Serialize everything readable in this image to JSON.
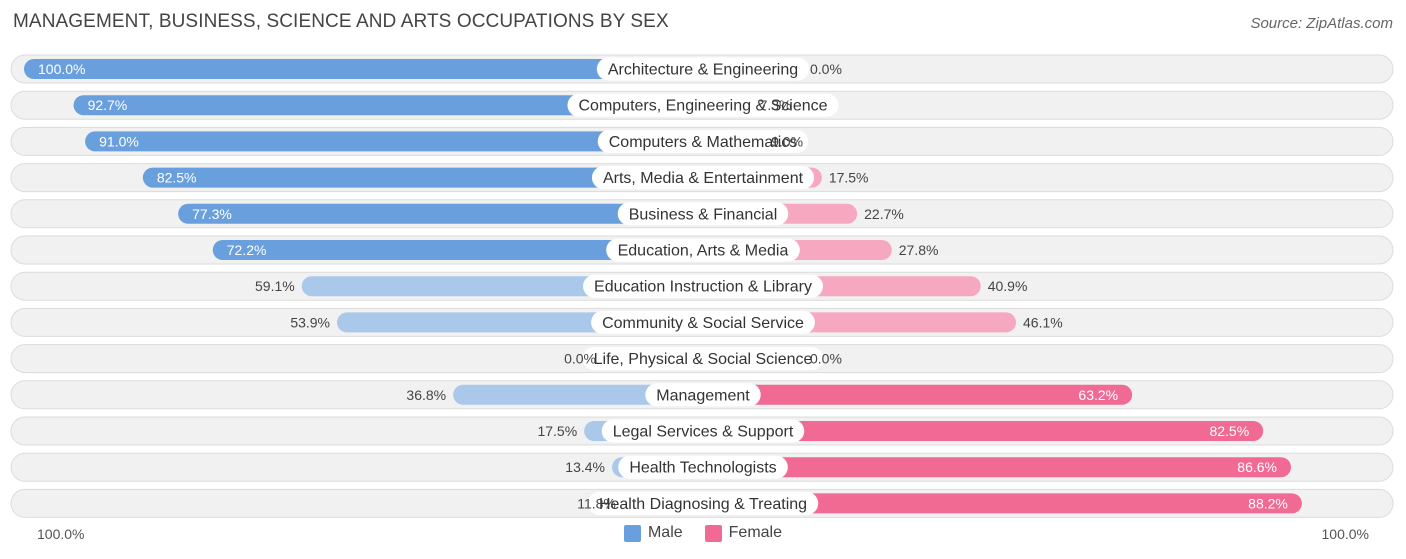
{
  "header": {
    "title": "MANAGEMENT, BUSINESS, SCIENCE AND ARTS OCCUPATIONS BY SEX",
    "source": "Source: ZipAtlas.com"
  },
  "axis": {
    "left_label": "100.0%",
    "right_label": "100.0%"
  },
  "legend": {
    "male_label": "Male",
    "female_label": "Female"
  },
  "colors": {
    "male_strong": "#6a9fdd",
    "male_light": "#a9c8ea",
    "female_strong": "#f06a94",
    "female_light": "#f6a8c1",
    "row_bg": "#f1f1f1",
    "row_border": "#dcdcdc"
  },
  "chart_data": {
    "type": "bar",
    "orientation": "horizontal-diverging",
    "title": "MANAGEMENT, BUSINESS, SCIENCE AND ARTS OCCUPATIONS BY SEX",
    "xlim": [
      0,
      100
    ],
    "categories": [
      "Architecture & Engineering",
      "Computers, Engineering & Science",
      "Computers & Mathematics",
      "Arts, Media & Entertainment",
      "Business & Financial",
      "Education, Arts & Media",
      "Education Instruction & Library",
      "Community & Social Service",
      "Life, Physical & Social Science",
      "Management",
      "Legal Services & Support",
      "Health Technologists",
      "Health Diagnosing & Treating"
    ],
    "series": [
      {
        "name": "Male",
        "values": [
          100.0,
          92.7,
          91.0,
          82.5,
          77.3,
          72.2,
          59.1,
          53.9,
          0.0,
          36.8,
          17.5,
          13.4,
          11.8
        ],
        "labels": [
          "100.0%",
          "92.7%",
          "91.0%",
          "82.5%",
          "77.3%",
          "72.2%",
          "59.1%",
          "53.9%",
          "0.0%",
          "36.8%",
          "17.5%",
          "13.4%",
          "11.8%"
        ]
      },
      {
        "name": "Female",
        "values": [
          0.0,
          7.3,
          9.0,
          17.5,
          22.7,
          27.8,
          40.9,
          46.1,
          0.0,
          63.2,
          82.5,
          86.6,
          88.2
        ],
        "labels": [
          "0.0%",
          "7.3%",
          "9.0%",
          "17.5%",
          "22.7%",
          "27.8%",
          "40.9%",
          "46.1%",
          "0.0%",
          "63.2%",
          "82.5%",
          "86.6%",
          "88.2%"
        ]
      }
    ]
  }
}
